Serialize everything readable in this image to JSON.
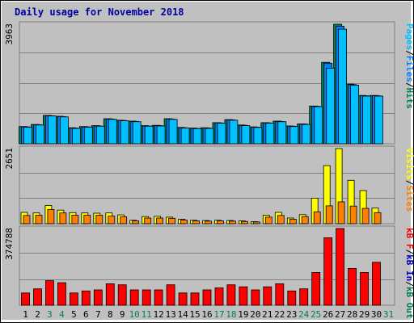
{
  "title": "Daily usage for November 2018",
  "chart_data": [
    {
      "type": "bar",
      "panel": "top",
      "y_max_label": "3963",
      "ylim": [
        0,
        3963
      ],
      "legend": [
        "Pages",
        "/",
        "Files",
        "/",
        "Hits"
      ],
      "legend_colors": [
        "#00c0ff",
        "#000000",
        "#0080ff",
        "#000000",
        "#00805c"
      ],
      "categories": [
        "1",
        "2",
        "3",
        "4",
        "5",
        "6",
        "7",
        "8",
        "9",
        "10",
        "11",
        "12",
        "13",
        "14",
        "15",
        "16",
        "17",
        "18",
        "19",
        "20",
        "21",
        "22",
        "23",
        "24",
        "25",
        "26",
        "27",
        "28",
        "29",
        "30",
        "31"
      ],
      "series": [
        {
          "name": "Hits",
          "color": "#00805c",
          "values": [
            570,
            640,
            940,
            910,
            530,
            570,
            600,
            830,
            780,
            750,
            600,
            610,
            830,
            540,
            520,
            530,
            700,
            800,
            620,
            560,
            700,
            750,
            590,
            660,
            1250,
            2700,
            3963,
            1980,
            1600,
            1600,
            0
          ]
        },
        {
          "name": "Files",
          "color": "#0080ff",
          "values": [
            560,
            630,
            930,
            900,
            520,
            560,
            590,
            820,
            770,
            740,
            590,
            600,
            820,
            530,
            510,
            520,
            690,
            790,
            610,
            550,
            690,
            740,
            580,
            650,
            1240,
            2670,
            3900,
            1960,
            1590,
            1590,
            0
          ]
        },
        {
          "name": "Pages",
          "color": "#00c0ff",
          "values": [
            550,
            620,
            920,
            890,
            510,
            550,
            580,
            810,
            760,
            730,
            580,
            590,
            810,
            520,
            500,
            510,
            680,
            780,
            600,
            540,
            680,
            730,
            570,
            640,
            1230,
            2500,
            3800,
            1940,
            1580,
            1580,
            0
          ]
        }
      ]
    },
    {
      "type": "bar",
      "panel": "middle",
      "y_max_label": "2651",
      "ylim": [
        0,
        2651
      ],
      "legend": [
        "Visits",
        "/",
        "Sites"
      ],
      "legend_colors": [
        "#ffff00",
        "#000000",
        "#ff8000"
      ],
      "categories": [
        "1",
        "2",
        "3",
        "4",
        "5",
        "6",
        "7",
        "8",
        "9",
        "10",
        "11",
        "12",
        "13",
        "14",
        "15",
        "16",
        "17",
        "18",
        "19",
        "20",
        "21",
        "22",
        "23",
        "24",
        "25",
        "26",
        "27",
        "28",
        "29",
        "30",
        "31"
      ],
      "series": [
        {
          "name": "Visits",
          "color": "#ffff00",
          "values": [
            400,
            380,
            640,
            480,
            390,
            380,
            370,
            380,
            310,
            120,
            250,
            260,
            230,
            160,
            120,
            110,
            120,
            110,
            100,
            70,
            300,
            400,
            200,
            320,
            900,
            2050,
            2651,
            1530,
            1170,
            550,
            0
          ]
        },
        {
          "name": "Sites",
          "color": "#ff8000",
          "values": [
            290,
            300,
            500,
            380,
            300,
            300,
            300,
            270,
            240,
            100,
            200,
            200,
            190,
            130,
            100,
            90,
            100,
            90,
            80,
            60,
            230,
            290,
            160,
            250,
            420,
            630,
            770,
            620,
            540,
            390,
            0
          ]
        }
      ]
    },
    {
      "type": "bar",
      "panel": "bottom",
      "y_max_label": "374788",
      "ylim": [
        0,
        374788
      ],
      "legend": [
        "kB F",
        "/",
        "kB In",
        "/",
        "kB Out"
      ],
      "legend_colors": [
        "#ff0000",
        "#000000",
        "#0000c0",
        "#000000",
        "#00805c"
      ],
      "categories": [
        "1",
        "2",
        "3",
        "4",
        "5",
        "6",
        "7",
        "8",
        "9",
        "10",
        "11",
        "12",
        "13",
        "14",
        "15",
        "16",
        "17",
        "18",
        "19",
        "20",
        "21",
        "22",
        "23",
        "24",
        "25",
        "26",
        "27",
        "28",
        "29",
        "30",
        "31"
      ],
      "series": [
        {
          "name": "kB F",
          "color": "#ff0000",
          "values": [
            60000,
            80000,
            120000,
            110000,
            60000,
            70000,
            75000,
            105000,
            100000,
            75000,
            75000,
            75000,
            100000,
            60000,
            60000,
            75000,
            85000,
            100000,
            90000,
            75000,
            90000,
            105000,
            70000,
            80000,
            160000,
            330000,
            374788,
            180000,
            160000,
            210000,
            0
          ]
        }
      ]
    }
  ],
  "x_axis": {
    "labels": [
      "1",
      "2",
      "3",
      "4",
      "5",
      "6",
      "7",
      "8",
      "9",
      "10",
      "11",
      "12",
      "13",
      "14",
      "15",
      "16",
      "17",
      "18",
      "19",
      "20",
      "21",
      "22",
      "23",
      "24",
      "25",
      "26",
      "27",
      "28",
      "29",
      "30",
      "31"
    ],
    "weekend_days": [
      "3",
      "4",
      "10",
      "11",
      "17",
      "18",
      "24",
      "25",
      "31"
    ],
    "weekday_color": "#000000",
    "weekend_color": "#00805c"
  }
}
